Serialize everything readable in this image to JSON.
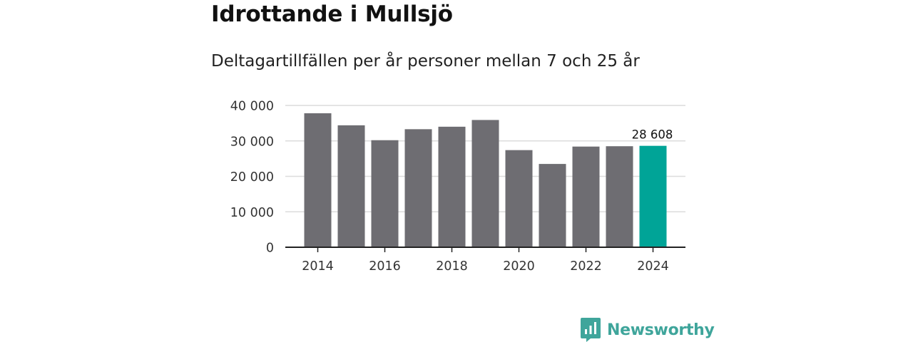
{
  "title": "Idrottande i Mullsjö",
  "subtitle": "Deltagartillfällen per år personer mellan 7 och 25 år",
  "chart_data": {
    "type": "bar",
    "title": "Idrottande i Mullsjö",
    "subtitle": "Deltagartillfällen per år personer mellan 7 och 25 år",
    "xlabel": "",
    "ylabel": "",
    "categories": [
      "2014",
      "2015",
      "2016",
      "2017",
      "2018",
      "2019",
      "2020",
      "2021",
      "2022",
      "2023",
      "2024"
    ],
    "values": [
      37800,
      34400,
      30200,
      33300,
      34000,
      35900,
      27400,
      23500,
      28400,
      28500,
      28608
    ],
    "x_tick_labels": [
      "2014",
      "2016",
      "2018",
      "2020",
      "2022",
      "2024"
    ],
    "y_ticks": [
      0,
      10000,
      20000,
      30000,
      40000
    ],
    "y_tick_labels": [
      "0",
      "10 000",
      "20 000",
      "30 000",
      "40 000"
    ],
    "ylim": [
      0,
      40000
    ],
    "grid": true,
    "highlight_index": 10,
    "annotations": [
      {
        "category": "2024",
        "text": "28 608"
      }
    ],
    "colors": {
      "bar": "#6e6d72",
      "highlight": "#00a497",
      "grid": "#dcdcdc",
      "axis": "#222222"
    }
  },
  "brand": {
    "name": "Newsworthy",
    "icon": "newsworthy-logo-icon",
    "color": "#3fa59b"
  }
}
